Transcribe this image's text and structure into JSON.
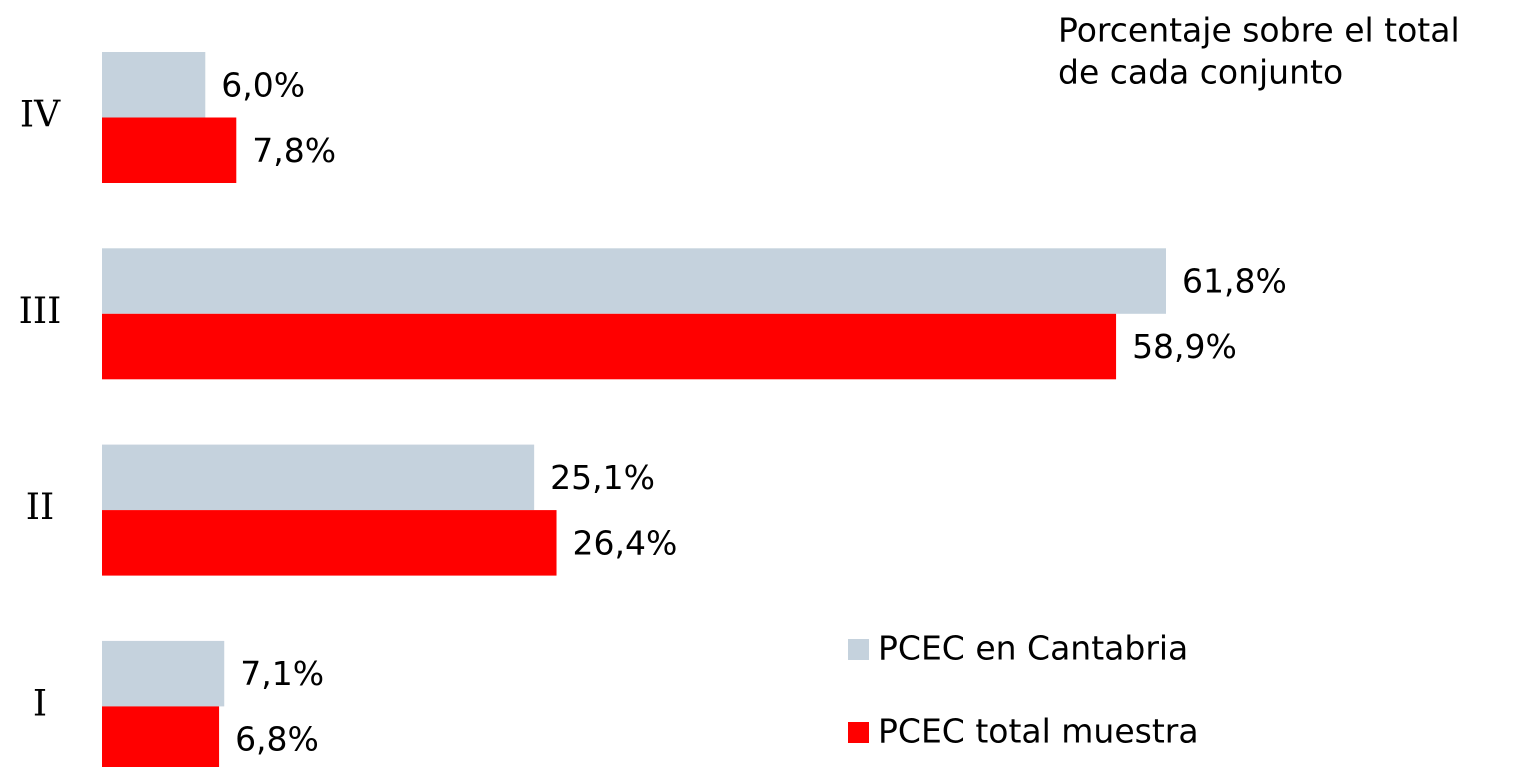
{
  "chart_data": {
    "type": "bar",
    "orientation": "horizontal",
    "annotation": [
      "Porcentaje sobre el total",
      "de cada conjunto"
    ],
    "categories": [
      "IV",
      "III",
      "II",
      "I"
    ],
    "series": [
      {
        "name": "PCEC en Cantabria",
        "color": "#c5d2dd",
        "values": [
          6.0,
          61.8,
          25.1,
          7.1
        ],
        "value_labels": [
          "6,0%",
          "61,8%",
          "25,1%",
          "7,1%"
        ]
      },
      {
        "name": "PCEC total muestra",
        "color": "#ff0000",
        "values": [
          7.8,
          58.9,
          26.4,
          6.8
        ],
        "value_labels": [
          "7,8%",
          "58,9%",
          "26,4%",
          "6,8%"
        ]
      }
    ],
    "legend": "lower right"
  }
}
